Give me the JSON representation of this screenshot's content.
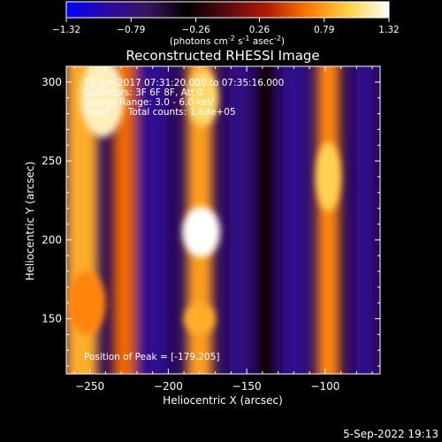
{
  "colorbar": {
    "ticks": [
      "-1.32",
      "-0.79",
      "-0.26",
      "0.26",
      "0.79",
      "1.32"
    ],
    "tick_values": [
      -1.32,
      -0.79,
      -0.26,
      0.26,
      0.79,
      1.32
    ],
    "range": [
      -1.32,
      1.32
    ],
    "units_base": "(photons cm",
    "units_exp1": "-2",
    "units_mid1": " s",
    "units_exp2": "-1",
    "units_mid2": " asec",
    "units_exp3": "-2",
    "units_end": ")",
    "colors": [
      "#0000ff",
      "#2a0aa0",
      "#3a1460",
      "#000000",
      "#5a0a10",
      "#b01e00",
      "#ff7a00",
      "#ffd24a",
      "#ffffff"
    ]
  },
  "annotations": {
    "time_range": "15-Jun-2017 07:31:20.000 to 07:35:16.000",
    "detectors": "Detectors: 3F 6F 8F, Att 0",
    "energy": "Energy Range: 3.0 - 6.0 keV",
    "clean": "Clean      Total counts: 1.68e+05",
    "peak": "Position of Peak = [-179,205]"
  },
  "footer": {
    "date": "5-Sep-2022 19:13"
  },
  "chart_data": {
    "type": "heatmap",
    "title": "Reconstructed RHESSI Image",
    "xlabel": "Heliocentric X (arcsec)",
    "ylabel": "Heliocentric Y (arcsec)",
    "xlim": [
      -265,
      -65
    ],
    "ylim": [
      115,
      310
    ],
    "xticks": [
      -250,
      -200,
      -150,
      -100
    ],
    "yticks": [
      150,
      200,
      250,
      300
    ],
    "xtick_labels": [
      "−250",
      "−200",
      "−150",
      "−100"
    ],
    "ytick_labels": [
      "150",
      "200",
      "250",
      "300"
    ],
    "peak": [
      -179,
      205
    ],
    "bands": [
      {
        "x": -255,
        "width": 20,
        "value": 0.85
      },
      {
        "x": -228,
        "width": 14,
        "value": 0.6
      },
      {
        "x": -210,
        "width": 18,
        "value": -0.9
      },
      {
        "x": -180,
        "width": 16,
        "value": 0.8
      },
      {
        "x": -155,
        "width": 12,
        "value": -0.85
      },
      {
        "x": -138,
        "width": 10,
        "value": -0.3
      },
      {
        "x": -120,
        "width": 14,
        "value": -0.9
      },
      {
        "x": -98,
        "width": 14,
        "value": 0.7
      },
      {
        "x": -75,
        "width": 10,
        "value": -0.9
      }
    ],
    "blobs": [
      {
        "x": -179,
        "y": 205,
        "rx": 12,
        "ry": 16,
        "value": 1.32
      },
      {
        "x": -242,
        "y": 290,
        "rx": 14,
        "ry": 25,
        "value": 1.2
      },
      {
        "x": -178,
        "y": 290,
        "rx": 10,
        "ry": 18,
        "value": 1.05
      },
      {
        "x": -98,
        "y": 240,
        "rx": 8,
        "ry": 22,
        "value": 1.0
      },
      {
        "x": -180,
        "y": 150,
        "rx": 10,
        "ry": 10,
        "value": 0.85
      },
      {
        "x": -252,
        "y": 160,
        "rx": 12,
        "ry": 20,
        "value": 0.7
      }
    ]
  }
}
